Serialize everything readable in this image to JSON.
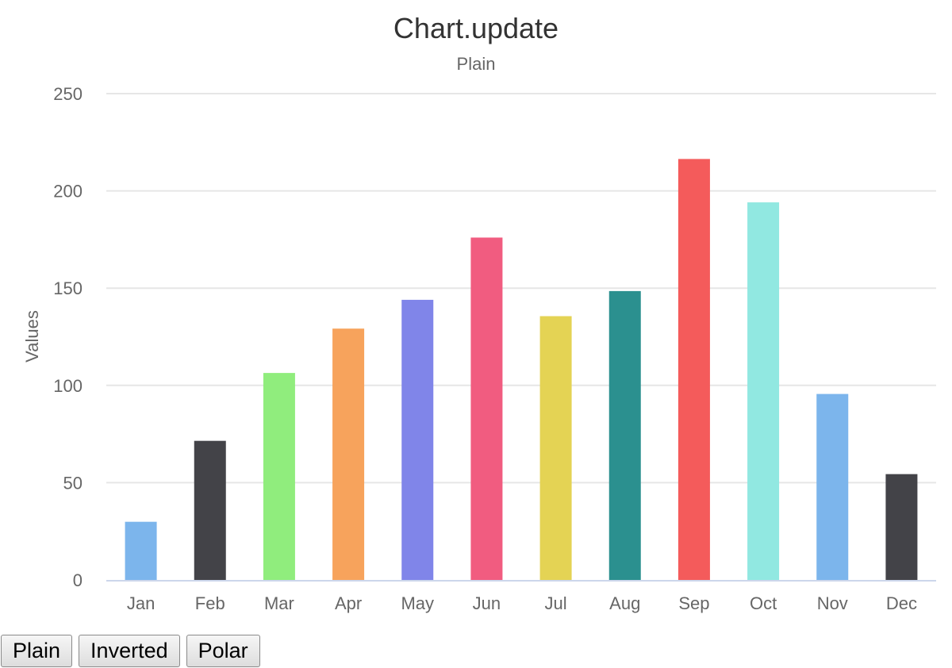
{
  "chart_data": {
    "type": "bar",
    "title": "Chart.update",
    "subtitle": "Plain",
    "xlabel": "",
    "ylabel": "Values",
    "ylim": [
      0,
      250
    ],
    "yticks": [
      0,
      50,
      100,
      150,
      200,
      250
    ],
    "grid": true,
    "legend": "none",
    "categories": [
      "Jan",
      "Feb",
      "Mar",
      "Apr",
      "May",
      "Jun",
      "Jul",
      "Aug",
      "Sep",
      "Oct",
      "Nov",
      "Dec"
    ],
    "values": [
      29.9,
      71.5,
      106.4,
      129.2,
      144.0,
      176.0,
      135.6,
      148.5,
      216.4,
      194.1,
      95.6,
      54.4
    ],
    "colors": [
      "#7cb5ec",
      "#434348",
      "#90ed7d",
      "#f7a35c",
      "#8085e9",
      "#f15c80",
      "#e4d354",
      "#2b908f",
      "#f45b5b",
      "#91e8e1",
      "#7cb5ec",
      "#434348"
    ]
  },
  "controls": {
    "plain_label": "Plain",
    "inverted_label": "Inverted",
    "polar_label": "Polar"
  }
}
